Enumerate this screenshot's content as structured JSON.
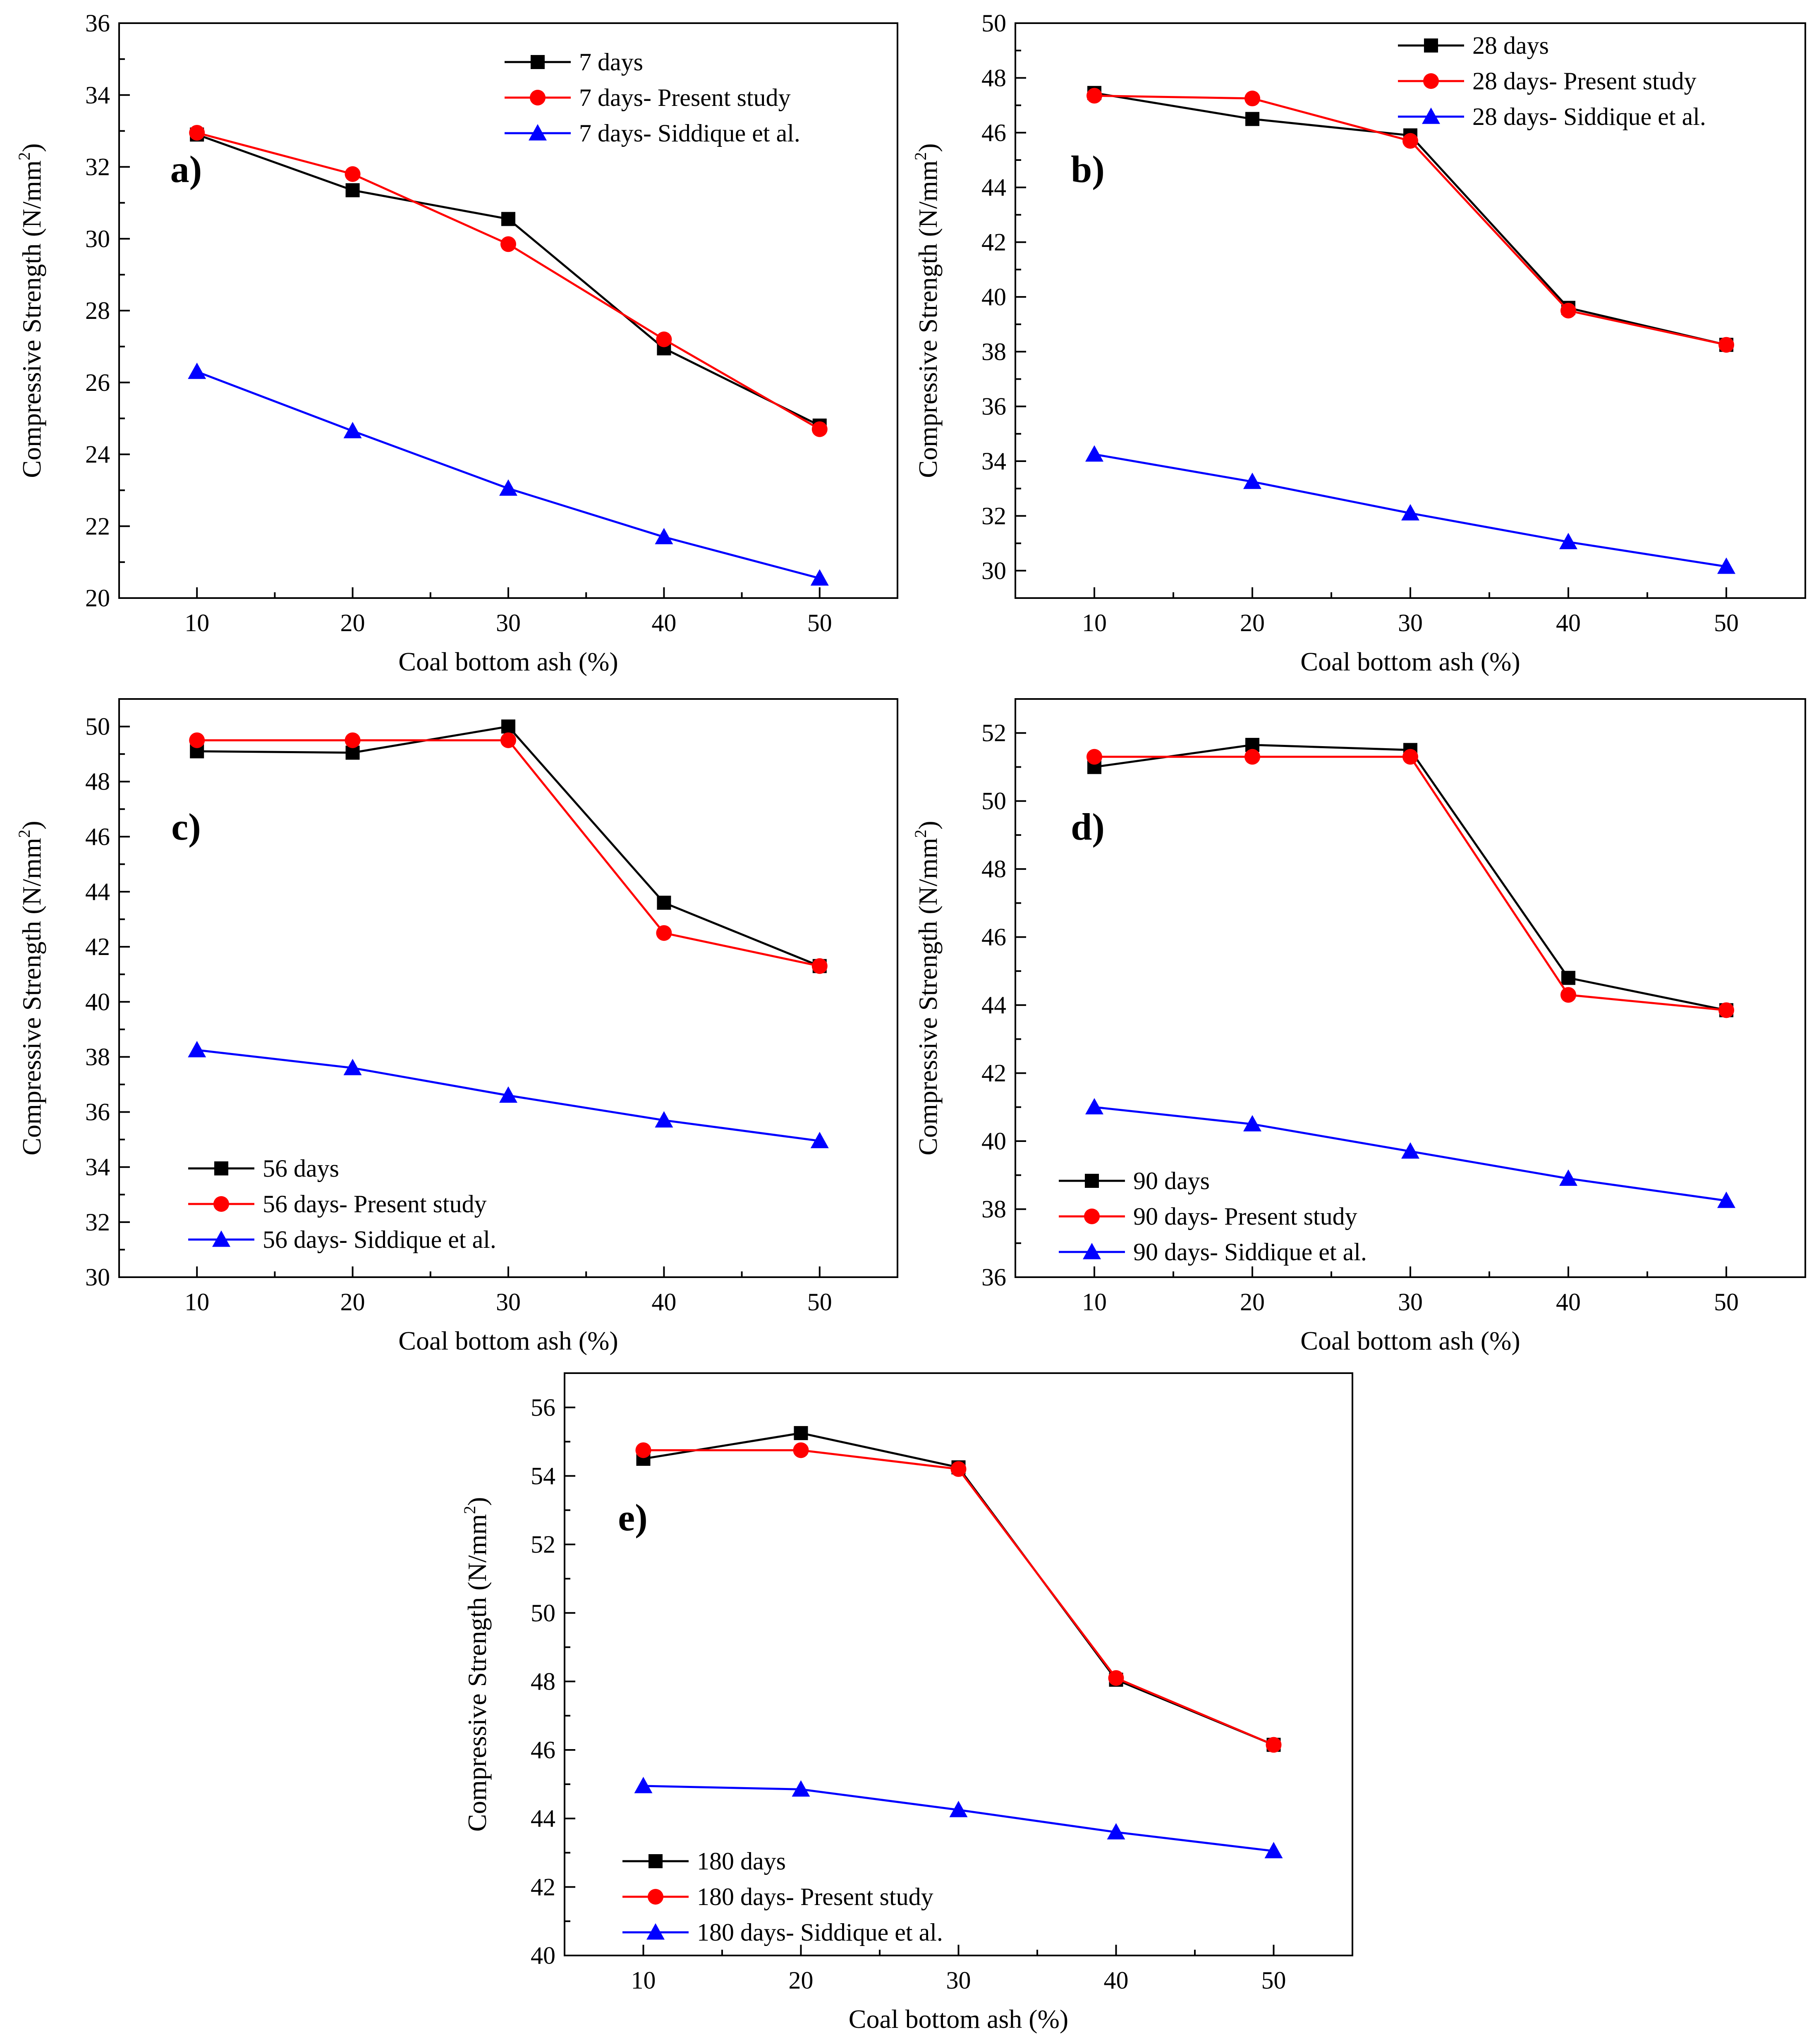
{
  "colors": {
    "black_series": "#000000",
    "red_series": "#ff0000",
    "blue_series": "#0000ff",
    "axis": "#000000",
    "background": "#ffffff"
  },
  "chart_data": [
    {
      "type": "line",
      "panel_label": "a)",
      "xlabel": "Coal bottom ash (%)",
      "ylabel": "Compressive Strength (N/mm",
      "ylabel_superscript": "2",
      "ylabel_close": ")",
      "x": [
        10,
        20,
        30,
        40,
        50
      ],
      "xticks": [
        "10",
        "20",
        "30",
        "40",
        "50"
      ],
      "xlim": [
        5,
        55
      ],
      "ylim": [
        20,
        36
      ],
      "yticks": [
        "20",
        "22",
        "24",
        "26",
        "28",
        "30",
        "32",
        "34",
        "36"
      ],
      "legend_position": "top-center",
      "series": [
        {
          "name": "7 days",
          "marker": "square",
          "color": "#000000",
          "values": [
            32.9,
            31.35,
            30.55,
            26.95,
            24.8
          ]
        },
        {
          "name": "7 days- Present study",
          "marker": "circle",
          "color": "#ff0000",
          "values": [
            32.95,
            31.8,
            29.85,
            27.2,
            24.7
          ]
        },
        {
          "name": "7 days- Siddique et al.",
          "marker": "triangle",
          "color": "#0000ff",
          "values": [
            26.3,
            24.65,
            23.05,
            21.7,
            20.55
          ]
        }
      ]
    },
    {
      "type": "line",
      "panel_label": "b)",
      "xlabel": "Coal bottom ash (%)",
      "ylabel": "Compressive Strength (N/mm",
      "ylabel_superscript": "2",
      "ylabel_close": ")",
      "x": [
        10,
        20,
        30,
        40,
        50
      ],
      "xticks": [
        "10",
        "20",
        "30",
        "40",
        "50"
      ],
      "xlim": [
        5,
        55
      ],
      "ylim": [
        29,
        50
      ],
      "yticks": [
        "30",
        "32",
        "34",
        "36",
        "38",
        "40",
        "42",
        "44",
        "46",
        "48",
        "50"
      ],
      "legend_position": "top-center",
      "series": [
        {
          "name": "28 days",
          "marker": "square",
          "color": "#000000",
          "values": [
            47.45,
            46.5,
            45.9,
            39.6,
            38.25
          ]
        },
        {
          "name": "28 days- Present study",
          "marker": "circle",
          "color": "#ff0000",
          "values": [
            47.35,
            47.25,
            45.7,
            39.5,
            38.25
          ]
        },
        {
          "name": "28 days- Siddique et al.",
          "marker": "triangle",
          "color": "#0000ff",
          "values": [
            34.25,
            33.25,
            32.1,
            31.05,
            30.15
          ]
        }
      ]
    },
    {
      "type": "line",
      "panel_label": "c)",
      "xlabel": "Coal bottom ash (%)",
      "ylabel": "Compressive Strength (N/mm",
      "ylabel_superscript": "2",
      "ylabel_close": ")",
      "x": [
        10,
        20,
        30,
        40,
        50
      ],
      "xticks": [
        "10",
        "20",
        "30",
        "40",
        "50"
      ],
      "xlim": [
        5,
        55
      ],
      "ylim": [
        30,
        51
      ],
      "yticks": [
        "30",
        "32",
        "34",
        "36",
        "38",
        "40",
        "42",
        "44",
        "46",
        "48",
        "50"
      ],
      "legend_position": "bottom-left",
      "series": [
        {
          "name": "56 days",
          "marker": "square",
          "color": "#000000",
          "values": [
            49.1,
            49.05,
            50.0,
            43.6,
            41.3
          ]
        },
        {
          "name": "56 days- Present study",
          "marker": "circle",
          "color": "#ff0000",
          "values": [
            49.5,
            49.5,
            49.5,
            42.5,
            41.3
          ]
        },
        {
          "name": "56 days- Siddique et al.",
          "marker": "triangle",
          "color": "#0000ff",
          "values": [
            38.25,
            37.6,
            36.6,
            35.7,
            34.95
          ]
        }
      ]
    },
    {
      "type": "line",
      "panel_label": "d)",
      "xlabel": "Coal bottom ash (%)",
      "ylabel": "Compressive Strength (N/mm",
      "ylabel_superscript": "2",
      "ylabel_close": ")",
      "x": [
        10,
        20,
        30,
        40,
        50
      ],
      "xticks": [
        "10",
        "20",
        "30",
        "40",
        "50"
      ],
      "xlim": [
        5,
        55
      ],
      "ylim": [
        36,
        53
      ],
      "yticks": [
        "36",
        "38",
        "40",
        "42",
        "44",
        "46",
        "48",
        "50",
        "52"
      ],
      "legend_position": "bottom-left",
      "series": [
        {
          "name": "90 days",
          "marker": "square",
          "color": "#000000",
          "values": [
            51.0,
            51.65,
            51.5,
            44.8,
            43.85
          ]
        },
        {
          "name": "90 days- Present study",
          "marker": "circle",
          "color": "#ff0000",
          "values": [
            51.3,
            51.3,
            51.3,
            44.3,
            43.85
          ]
        },
        {
          "name": "90 days- Siddique et al.",
          "marker": "triangle",
          "color": "#0000ff",
          "values": [
            41.0,
            40.5,
            39.7,
            38.9,
            38.25
          ]
        }
      ]
    },
    {
      "type": "line",
      "panel_label": "e)",
      "xlabel": "Coal bottom ash (%)",
      "ylabel": "Compressive Strength (N/mm",
      "ylabel_superscript": "2",
      "ylabel_close": ")",
      "x": [
        10,
        20,
        30,
        40,
        50
      ],
      "xticks": [
        "10",
        "20",
        "30",
        "40",
        "50"
      ],
      "xlim": [
        5,
        55
      ],
      "ylim": [
        40,
        57
      ],
      "yticks": [
        "40",
        "42",
        "44",
        "46",
        "48",
        "50",
        "52",
        "54",
        "56"
      ],
      "legend_position": "bottom-left",
      "series": [
        {
          "name": "180 days",
          "marker": "square",
          "color": "#000000",
          "values": [
            54.5,
            55.25,
            54.25,
            48.05,
            46.15
          ]
        },
        {
          "name": "180 days- Present study",
          "marker": "circle",
          "color": "#ff0000",
          "values": [
            54.75,
            54.75,
            54.2,
            48.1,
            46.15
          ]
        },
        {
          "name": "180 days- Siddique et al.",
          "marker": "triangle",
          "color": "#0000ff",
          "values": [
            44.95,
            44.85,
            44.25,
            43.6,
            43.05
          ]
        }
      ]
    }
  ]
}
